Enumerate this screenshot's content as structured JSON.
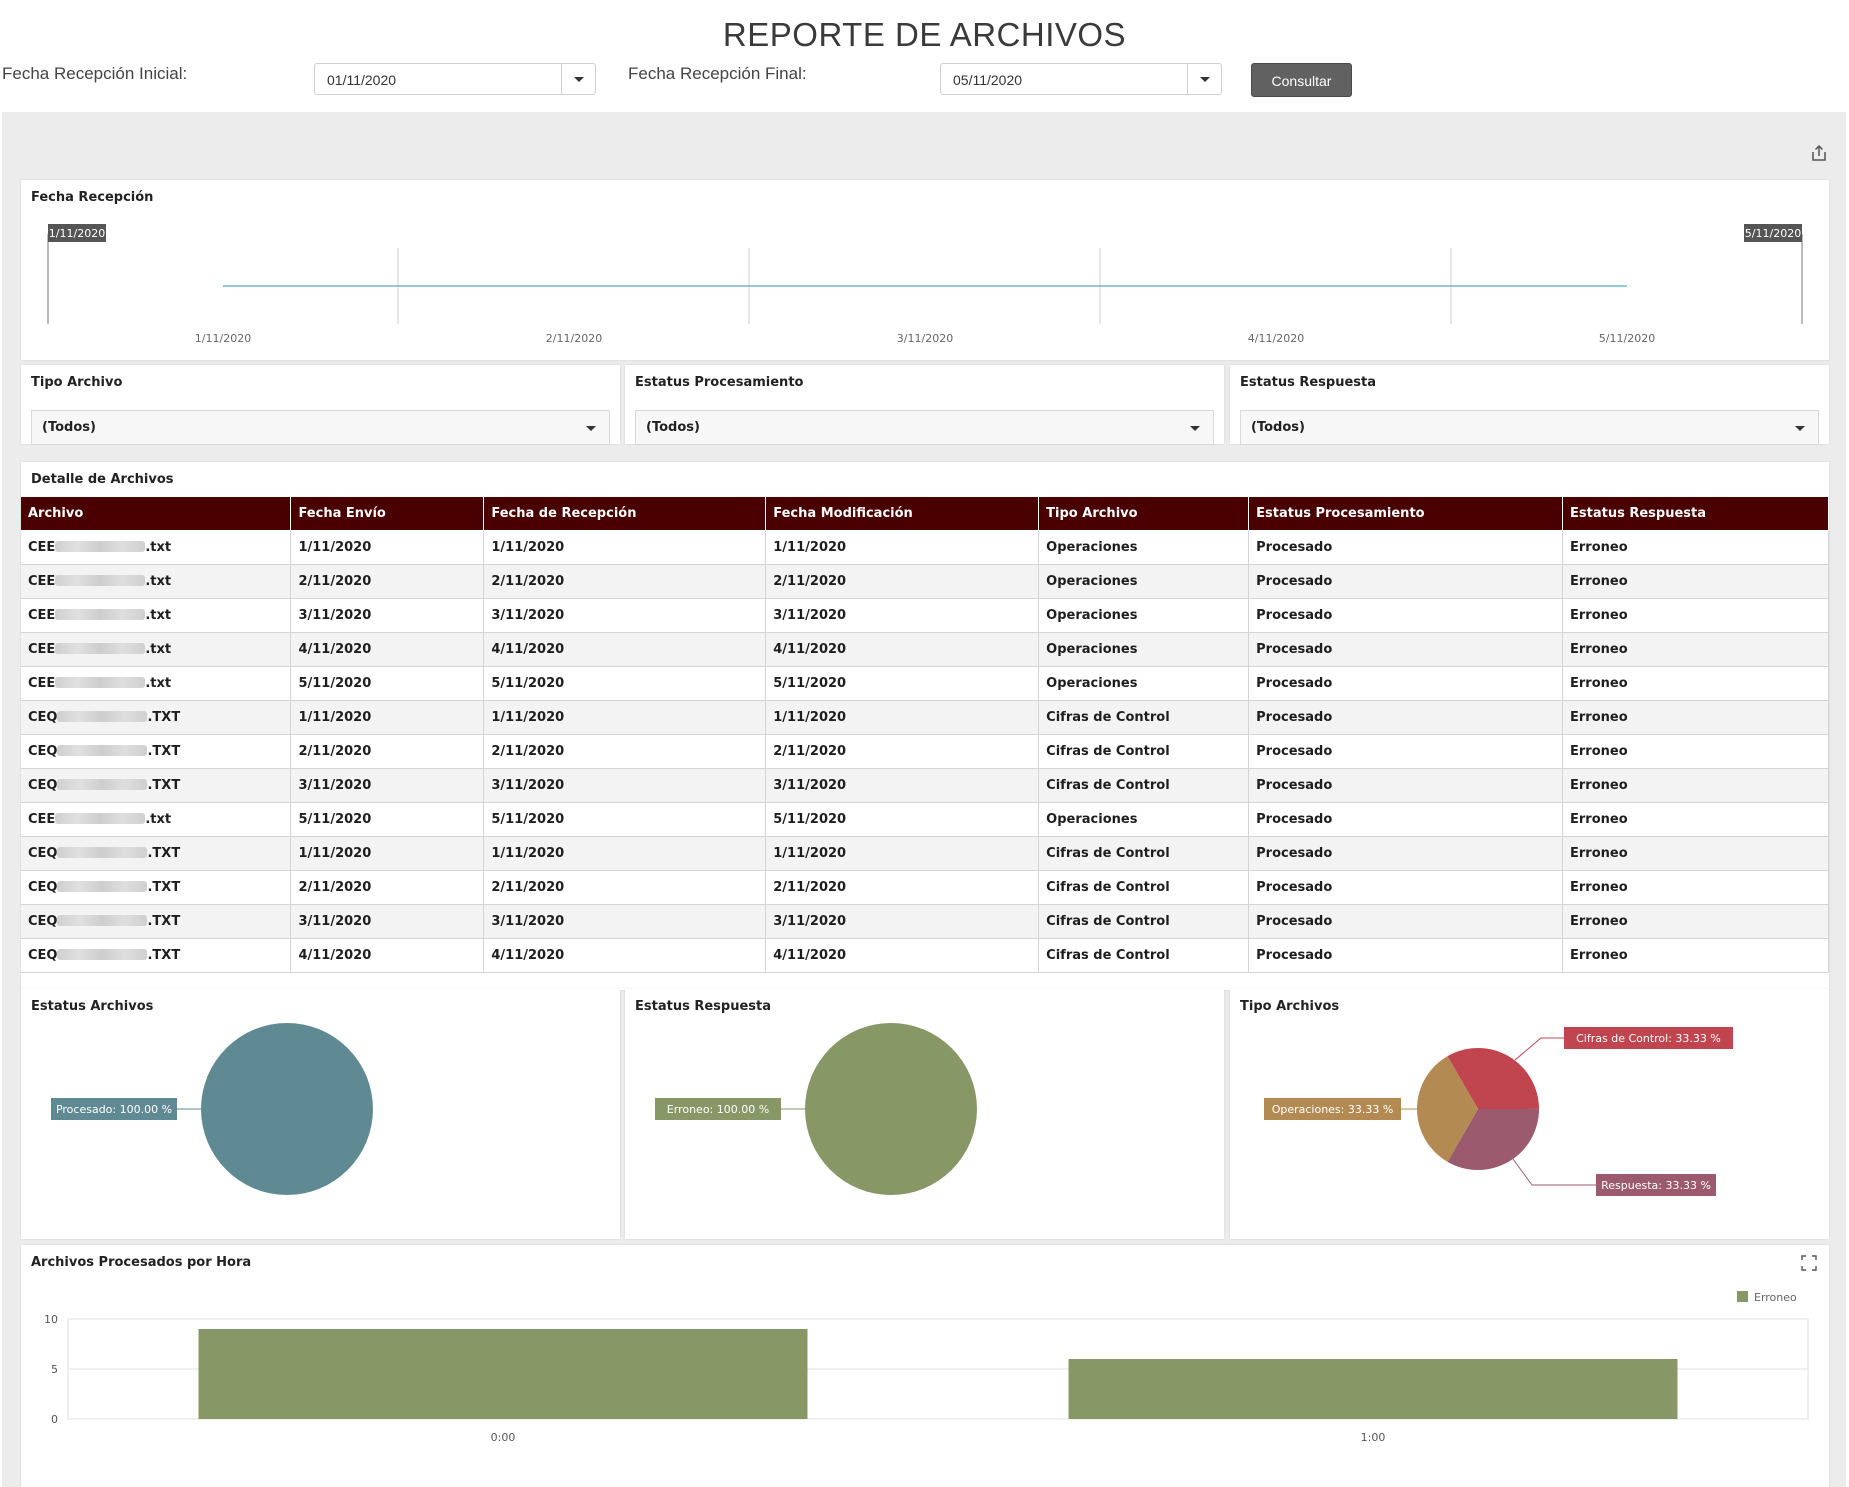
{
  "header": {
    "title": "REPORTE DE ARCHIVOS"
  },
  "filters": {
    "start_label": "Fecha Recepción Inicial:",
    "start_value": "01/11/2020",
    "end_label": "Fecha Recepción Final:",
    "end_value": "05/11/2020",
    "button_label": "Consultar"
  },
  "range_panel": {
    "title": "Fecha Recepción",
    "start_badge": "1/11/2020",
    "end_badge": "5/11/2020",
    "ticks": [
      "1/11/2020",
      "2/11/2020",
      "3/11/2020",
      "4/11/2020",
      "5/11/2020"
    ]
  },
  "filter_panels": [
    {
      "title": "Tipo Archivo",
      "value": "(Todos)"
    },
    {
      "title": "Estatus Procesamiento",
      "value": "(Todos)"
    },
    {
      "title": "Estatus Respuesta",
      "value": "(Todos)"
    }
  ],
  "detail": {
    "title": "Detalle de Archivos",
    "columns": [
      "Archivo",
      "Fecha Envío",
      "Fecha de Recepción",
      "Fecha Modificación",
      "Tipo Archivo",
      "Estatus Procesamiento",
      "Estatus Respuesta"
    ],
    "rows": [
      {
        "prefix": "CEE",
        "ext": ".txt",
        "envio": "1/11/2020",
        "recepcion": "1/11/2020",
        "modificacion": "1/11/2020",
        "tipo": "Operaciones",
        "procesamiento": "Procesado",
        "respuesta": "Erroneo"
      },
      {
        "prefix": "CEE",
        "ext": ".txt",
        "envio": "2/11/2020",
        "recepcion": "2/11/2020",
        "modificacion": "2/11/2020",
        "tipo": "Operaciones",
        "procesamiento": "Procesado",
        "respuesta": "Erroneo"
      },
      {
        "prefix": "CEE",
        "ext": ".txt",
        "envio": "3/11/2020",
        "recepcion": "3/11/2020",
        "modificacion": "3/11/2020",
        "tipo": "Operaciones",
        "procesamiento": "Procesado",
        "respuesta": "Erroneo"
      },
      {
        "prefix": "CEE",
        "ext": ".txt",
        "envio": "4/11/2020",
        "recepcion": "4/11/2020",
        "modificacion": "4/11/2020",
        "tipo": "Operaciones",
        "procesamiento": "Procesado",
        "respuesta": "Erroneo"
      },
      {
        "prefix": "CEE",
        "ext": ".txt",
        "envio": "5/11/2020",
        "recepcion": "5/11/2020",
        "modificacion": "5/11/2020",
        "tipo": "Operaciones",
        "procesamiento": "Procesado",
        "respuesta": "Erroneo"
      },
      {
        "prefix": "CEQ",
        "ext": ".TXT",
        "envio": "1/11/2020",
        "recepcion": "1/11/2020",
        "modificacion": "1/11/2020",
        "tipo": "Cifras de Control",
        "procesamiento": "Procesado",
        "respuesta": "Erroneo"
      },
      {
        "prefix": "CEQ",
        "ext": ".TXT",
        "envio": "2/11/2020",
        "recepcion": "2/11/2020",
        "modificacion": "2/11/2020",
        "tipo": "Cifras de Control",
        "procesamiento": "Procesado",
        "respuesta": "Erroneo"
      },
      {
        "prefix": "CEQ",
        "ext": ".TXT",
        "envio": "3/11/2020",
        "recepcion": "3/11/2020",
        "modificacion": "3/11/2020",
        "tipo": "Cifras de Control",
        "procesamiento": "Procesado",
        "respuesta": "Erroneo"
      },
      {
        "prefix": "CEE",
        "ext": ".txt",
        "envio": "5/11/2020",
        "recepcion": "5/11/2020",
        "modificacion": "5/11/2020",
        "tipo": "Operaciones",
        "procesamiento": "Procesado",
        "respuesta": "Erroneo"
      },
      {
        "prefix": "CEQ",
        "ext": ".TXT",
        "envio": "1/11/2020",
        "recepcion": "1/11/2020",
        "modificacion": "1/11/2020",
        "tipo": "Cifras de Control",
        "procesamiento": "Procesado",
        "respuesta": "Erroneo"
      },
      {
        "prefix": "CEQ",
        "ext": ".TXT",
        "envio": "2/11/2020",
        "recepcion": "2/11/2020",
        "modificacion": "2/11/2020",
        "tipo": "Cifras de Control",
        "procesamiento": "Procesado",
        "respuesta": "Erroneo"
      },
      {
        "prefix": "CEQ",
        "ext": ".TXT",
        "envio": "3/11/2020",
        "recepcion": "3/11/2020",
        "modificacion": "3/11/2020",
        "tipo": "Cifras de Control",
        "procesamiento": "Procesado",
        "respuesta": "Erroneo"
      },
      {
        "prefix": "CEQ",
        "ext": ".TXT",
        "envio": "4/11/2020",
        "recepcion": "4/11/2020",
        "modificacion": "4/11/2020",
        "tipo": "Cifras de Control",
        "procesamiento": "Procesado",
        "respuesta": "Erroneo"
      }
    ]
  },
  "pies": {
    "estatus_archivos": {
      "title": "Estatus Archivos",
      "slices": [
        {
          "label": "Procesado: 100.00 %",
          "value": 100,
          "color": "#5f8a93"
        }
      ]
    },
    "estatus_respuesta": {
      "title": "Estatus Respuesta",
      "slices": [
        {
          "label": "Erroneo: 100.00 %",
          "value": 100,
          "color": "#879766"
        }
      ]
    },
    "tipo_archivos": {
      "title": "Tipo Archivos",
      "slices": [
        {
          "label": "Cifras de Control: 33.33 %",
          "value": 33.33,
          "color": "#c0454f"
        },
        {
          "label": "Respuesta: 33.33 %",
          "value": 33.33,
          "color": "#9b5a6e"
        },
        {
          "label": "Operaciones: 33.33 %",
          "value": 33.33,
          "color": "#b38a52"
        }
      ]
    }
  },
  "chart_data": {
    "type": "bar",
    "title": "Archivos Procesados por Hora",
    "categories": [
      "0:00",
      "1:00"
    ],
    "series": [
      {
        "name": "Erroneo",
        "values": [
          9,
          6
        ],
        "color": "#879766"
      }
    ],
    "yticks": [
      "0",
      "5",
      "10"
    ],
    "ylim": [
      0,
      10
    ],
    "legend": "top-right",
    "grid": true
  },
  "icons": {
    "export": "share-export-icon",
    "expand": "fullscreen-icon"
  }
}
